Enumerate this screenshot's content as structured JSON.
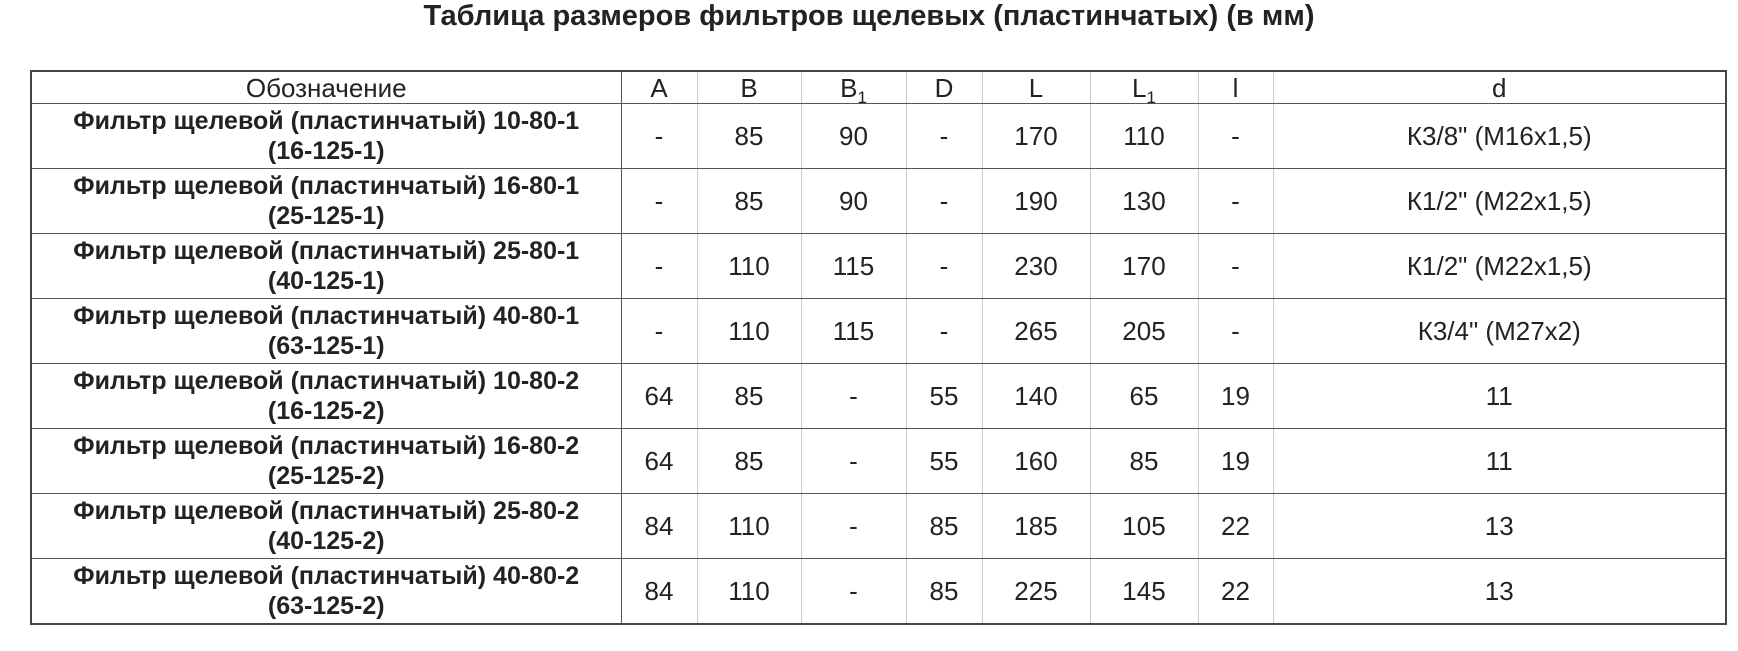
{
  "title": "Таблица размеров фильтров щелевых (пластинчатых) (в мм)",
  "table": {
    "headers": [
      {
        "main": "Обозначение",
        "sub": ""
      },
      {
        "main": "A",
        "sub": ""
      },
      {
        "main": "B",
        "sub": ""
      },
      {
        "main": "B",
        "sub": "1"
      },
      {
        "main": "D",
        "sub": ""
      },
      {
        "main": "L",
        "sub": ""
      },
      {
        "main": "L",
        "sub": "1"
      },
      {
        "main": "l",
        "sub": ""
      },
      {
        "main": "d",
        "sub": ""
      }
    ],
    "rows": [
      {
        "name1": "Фильтр щелевой (пластинчатый) 10-80-1",
        "name2": "(16-125-1)",
        "A": "-",
        "B": "85",
        "B1": "90",
        "D": "-",
        "L": "170",
        "L1": "110",
        "l": "-",
        "d": "К3/8\" (М16х1,5)"
      },
      {
        "name1": "Фильтр щелевой (пластинчатый) 16-80-1",
        "name2": "(25-125-1)",
        "A": "-",
        "B": "85",
        "B1": "90",
        "D": "-",
        "L": "190",
        "L1": "130",
        "l": "-",
        "d": "К1/2\" (М22х1,5)"
      },
      {
        "name1": "Фильтр щелевой (пластинчатый) 25-80-1",
        "name2": "(40-125-1)",
        "A": "-",
        "B": "110",
        "B1": "115",
        "D": "-",
        "L": "230",
        "L1": "170",
        "l": "-",
        "d": "К1/2\" (М22х1,5)"
      },
      {
        "name1": "Фильтр щелевой (пластинчатый) 40-80-1",
        "name2": "(63-125-1)",
        "A": "-",
        "B": "110",
        "B1": "115",
        "D": "-",
        "L": "265",
        "L1": "205",
        "l": "-",
        "d": "К3/4\" (М27х2)"
      },
      {
        "name1": "Фильтр щелевой (пластинчатый) 10-80-2",
        "name2": "(16-125-2)",
        "A": "64",
        "B": "85",
        "B1": "-",
        "D": "55",
        "L": "140",
        "L1": "65",
        "l": "19",
        "d": "11"
      },
      {
        "name1": "Фильтр щелевой (пластинчатый) 16-80-2",
        "name2": "(25-125-2)",
        "A": "64",
        "B": "85",
        "B1": "-",
        "D": "55",
        "L": "160",
        "L1": "85",
        "l": "19",
        "d": "11"
      },
      {
        "name1": "Фильтр щелевой (пластинчатый) 25-80-2",
        "name2": "(40-125-2)",
        "A": "84",
        "B": "110",
        "B1": "-",
        "D": "85",
        "L": "185",
        "L1": "105",
        "l": "22",
        "d": "13"
      },
      {
        "name1": "Фильтр щелевой (пластинчатый) 40-80-2",
        "name2": "(63-125-2)",
        "A": "84",
        "B": "110",
        "B1": "-",
        "D": "85",
        "L": "225",
        "L1": "145",
        "l": "22",
        "d": "13"
      }
    ]
  }
}
